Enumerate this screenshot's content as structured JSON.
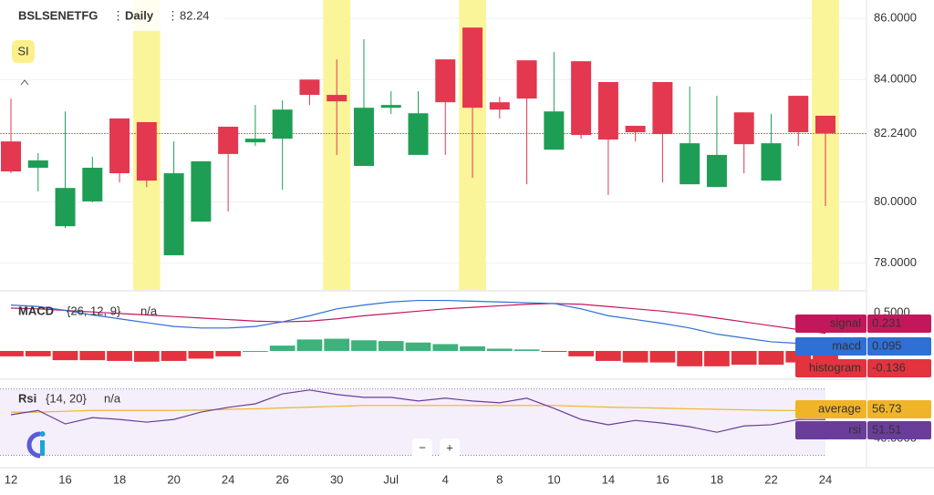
{
  "chart_data": [
    {
      "type": "candlestick",
      "title": "BSLSENETFG",
      "interval": "Daily",
      "price_line": {
        "value": 82.24,
        "label": "82.2400"
      },
      "categories": [
        "12",
        null,
        "16",
        null,
        "18",
        null,
        "20",
        null,
        "24",
        null,
        "26",
        null,
        "30",
        null,
        "Jul",
        null,
        "4",
        null,
        "8",
        null,
        "10",
        null,
        "14",
        null,
        "16",
        null,
        "18",
        null,
        "22",
        null,
        "24"
      ],
      "open": [
        81.98,
        81.12,
        79.21,
        80.02,
        82.73,
        82.61,
        78.26,
        79.36,
        82.46,
        81.95,
        82.07,
        84.0,
        83.5,
        81.18,
        83.08,
        81.54,
        84.66,
        85.7,
        83.26,
        84.63,
        81.71,
        84.6,
        83.92,
        82.49,
        83.92,
        80.58,
        80.49,
        82.93,
        80.7,
        83.47,
        82.82
      ],
      "high": [
        83.38,
        81.6,
        82.96,
        81.48,
        82.73,
        82.61,
        81.98,
        81.33,
        82.46,
        83.17,
        83.32,
        84.0,
        84.66,
        85.32,
        83.62,
        83.62,
        84.66,
        85.7,
        83.44,
        84.63,
        84.9,
        84.6,
        83.92,
        82.49,
        83.92,
        83.77,
        83.47,
        82.93,
        82.88,
        83.47,
        82.82
      ],
      "low": [
        80.94,
        80.35,
        79.15,
        79.99,
        80.64,
        80.49,
        78.26,
        79.36,
        79.69,
        81.83,
        80.4,
        83.17,
        81.54,
        81.18,
        82.88,
        81.54,
        81.54,
        80.79,
        82.73,
        80.58,
        81.71,
        82.07,
        80.23,
        81.98,
        80.64,
        80.58,
        80.49,
        80.94,
        80.7,
        81.83,
        79.87
      ],
      "close": [
        81.0,
        81.36,
        80.46,
        81.12,
        80.94,
        80.7,
        80.94,
        81.33,
        81.57,
        82.07,
        83.02,
        83.5,
        83.29,
        83.08,
        83.17,
        82.9,
        83.26,
        83.08,
        83.02,
        83.38,
        82.96,
        82.19,
        82.04,
        82.28,
        82.22,
        81.92,
        81.54,
        81.89,
        81.92,
        82.28,
        82.24
      ],
      "up_color": "#1e9e55",
      "down_color": "#e3384f",
      "highlight_indices": [
        5,
        12,
        17,
        30
      ],
      "highlight_color": "#fbf59a",
      "ylim": [
        77.13,
        86.6
      ],
      "yticks": [
        {
          "value": 78,
          "label": "78.0000"
        },
        {
          "value": 80,
          "label": "80.0000"
        },
        {
          "value": 84,
          "label": "84.0000"
        },
        {
          "value": 86,
          "label": "86.0000"
        }
      ],
      "grid": true,
      "button": "SI"
    },
    {
      "type": "macd",
      "title": "MACD",
      "params": "{26, 12, 9}",
      "status": "n/a",
      "ylim": [
        -0.345,
        0.75
      ],
      "yticks": [
        {
          "value": 0.5,
          "label": "0.5000"
        }
      ],
      "series": [
        {
          "name": "signal",
          "kind": "line",
          "color": "#c2185b",
          "values": [
            0.56,
            0.55,
            0.53,
            0.51,
            0.49,
            0.47,
            0.45,
            0.43,
            0.41,
            0.39,
            0.38,
            0.39,
            0.42,
            0.46,
            0.49,
            0.52,
            0.55,
            0.57,
            0.59,
            0.61,
            0.62,
            0.61,
            0.58,
            0.55,
            0.52,
            0.48,
            0.43,
            0.38,
            0.33,
            0.28,
            0.231
          ]
        },
        {
          "name": "macd",
          "kind": "line",
          "color": "#2f6fd6",
          "values": [
            0.6,
            0.58,
            0.53,
            0.47,
            0.42,
            0.37,
            0.32,
            0.3,
            0.3,
            0.32,
            0.38,
            0.46,
            0.55,
            0.6,
            0.64,
            0.66,
            0.66,
            0.65,
            0.64,
            0.63,
            0.62,
            0.55,
            0.46,
            0.41,
            0.36,
            0.3,
            0.22,
            0.17,
            0.12,
            0.1,
            0.095
          ]
        },
        {
          "name": "histogram",
          "kind": "bar",
          "color": "#e3333f",
          "up_color": "#3db37c",
          "values": [
            -0.07,
            -0.07,
            -0.12,
            -0.12,
            -0.13,
            -0.14,
            -0.13,
            -0.1,
            -0.07,
            0,
            0.07,
            0.15,
            0.16,
            0.14,
            0.13,
            0.11,
            0.09,
            0.06,
            0.03,
            0.02,
            -0.01,
            -0.07,
            -0.13,
            -0.15,
            -0.15,
            -0.2,
            -0.2,
            -0.18,
            -0.18,
            -0.15,
            -0.136
          ]
        }
      ]
    },
    {
      "type": "rsi",
      "title": "Rsi",
      "params": "{14, 20}",
      "status": "n/a",
      "ylim": [
        23.15,
        73.6
      ],
      "yticks": [
        {
          "value": 40,
          "label": "40.0000"
        }
      ],
      "bands": [
        30,
        70
      ],
      "series": [
        {
          "name": "average",
          "kind": "line",
          "color": "#f0b429",
          "values": [
            56,
            56,
            56.5,
            57,
            57,
            57,
            57,
            57.3,
            57.7,
            58,
            58.5,
            59,
            59.5,
            60,
            60,
            60,
            60,
            60,
            60,
            60,
            60,
            59.5,
            59,
            58.7,
            58.4,
            58,
            57.7,
            57.4,
            57.1,
            56.9,
            56.73
          ]
        },
        {
          "name": "rsi",
          "kind": "line",
          "color": "#6a3d9a",
          "values": [
            54.4,
            57,
            48.9,
            52.7,
            51.6,
            50,
            51.6,
            56,
            58.9,
            61,
            67,
            69.3,
            66.6,
            64.9,
            64.9,
            62.7,
            64.4,
            62.7,
            61.6,
            64.4,
            58.3,
            51.6,
            48.4,
            51,
            49.4,
            47.2,
            43.9,
            47.7,
            48.4,
            51.6,
            51.51
          ]
        }
      ]
    }
  ]
}
